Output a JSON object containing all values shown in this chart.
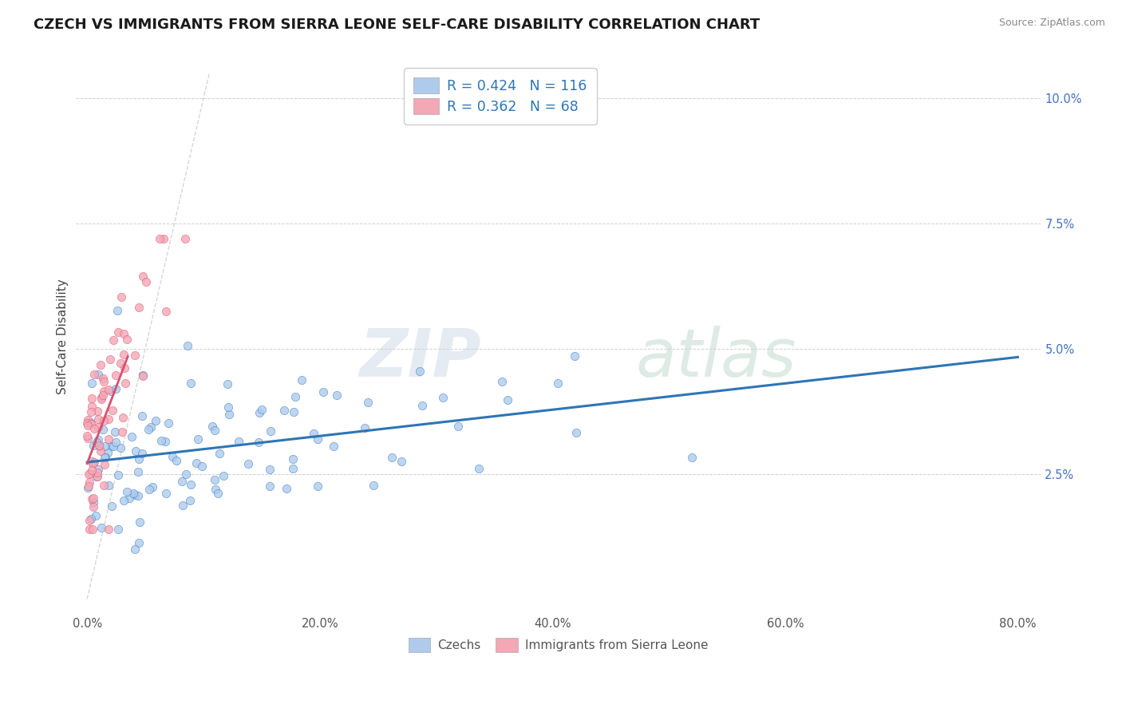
{
  "title": "CZECH VS IMMIGRANTS FROM SIERRA LEONE SELF-CARE DISABILITY CORRELATION CHART",
  "source": "Source: ZipAtlas.com",
  "ylabel": "Self-Care Disability",
  "xlim": [
    -0.01,
    0.82
  ],
  "ylim": [
    -0.003,
    0.108
  ],
  "yticks": [
    0.025,
    0.05,
    0.075,
    0.1
  ],
  "ytick_labels": [
    "2.5%",
    "5.0%",
    "7.5%",
    "10.0%"
  ],
  "xticks": [
    0.0,
    0.2,
    0.4,
    0.6,
    0.8
  ],
  "xtick_labels": [
    "0.0%",
    "20.0%",
    "40.0%",
    "60.0%",
    "80.0%"
  ],
  "legend_r1": "R = 0.424",
  "legend_n1": "N = 116",
  "legend_r2": "R = 0.362",
  "legend_n2": "N = 68",
  "color_czech": "#aecbee",
  "color_sierra": "#f4a7b5",
  "color_trend_czech": "#2e75b6",
  "color_trend_sierra": "#d94f6e",
  "color_diag": "#cccccc",
  "background": "#ffffff",
  "watermark_zip": "ZIP",
  "watermark_atlas": "atlas",
  "title_fontsize": 13,
  "label_fontsize": 11,
  "tick_fontsize": 10.5
}
